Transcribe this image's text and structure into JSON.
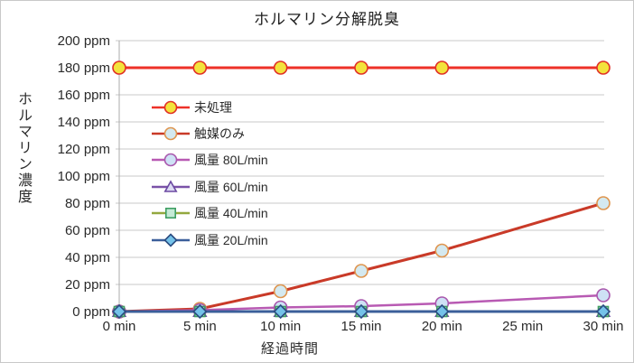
{
  "colors": {
    "background": "#ffffff",
    "frame_border": "#c9c9c9",
    "grid": "#c9c9c9",
    "axis": "#ababab",
    "text": "#2b2b2b"
  },
  "chart_data": {
    "type": "line",
    "title": "ホルマリン分解脱臭",
    "xlabel": "経過時間",
    "ylabel": "ホルマリン濃度",
    "xlim": [
      0,
      30
    ],
    "ylim": [
      0,
      200
    ],
    "grid": true,
    "legend_position": "upper-left-inside",
    "x_ticks": [
      0,
      5,
      10,
      15,
      20,
      25,
      30
    ],
    "x_tick_labels": [
      "0 min",
      "5 min",
      "10 min",
      "15 min",
      "20 min",
      "25 min",
      "30 min"
    ],
    "y_ticks": [
      0,
      20,
      40,
      60,
      80,
      100,
      120,
      140,
      160,
      180,
      200
    ],
    "y_tick_labels": [
      "0 ppm",
      "20 ppm",
      "40 ppm",
      "60 ppm",
      "80 ppm",
      "100 ppm",
      "120 ppm",
      "140 ppm",
      "160 ppm",
      "180 ppm",
      "200 ppm"
    ],
    "x": [
      0,
      5,
      10,
      15,
      20,
      30
    ],
    "series": [
      {
        "id": "untreated",
        "name": "未処理",
        "values": [
          180,
          180,
          180,
          180,
          180,
          180
        ],
        "line_color": "#ee3128",
        "line_width": 3,
        "marker": "circle",
        "marker_fill": "#f3e33c",
        "marker_stroke": "#e03026"
      },
      {
        "id": "catalyst-only",
        "name": "触媒のみ",
        "values": [
          0,
          2,
          15,
          30,
          45,
          80
        ],
        "line_color": "#c93a28",
        "line_width": 3,
        "marker": "circle",
        "marker_fill": "#d4e9f0",
        "marker_stroke": "#df954e"
      },
      {
        "id": "airflow-80",
        "name": "風量 80L/min",
        "values": [
          0,
          1,
          3,
          4,
          6,
          12
        ],
        "line_color": "#b85ab3",
        "line_width": 2.5,
        "marker": "circle",
        "marker_fill": "#cee1f5",
        "marker_stroke": "#a958ad"
      },
      {
        "id": "airflow-60",
        "name": "風量 60L/min",
        "values": [
          0,
          0,
          0,
          0,
          0,
          0
        ],
        "line_color": "#7b52a8",
        "line_width": 2,
        "marker": "triangle",
        "marker_fill": "#dcdaf2",
        "marker_stroke": "#6b49a2"
      },
      {
        "id": "airflow-40",
        "name": "風量 40L/min",
        "values": [
          0,
          0,
          0,
          0,
          0,
          0
        ],
        "line_color": "#93a83e",
        "line_width": 2.5,
        "marker": "square",
        "marker_fill": "#c5ead6",
        "marker_stroke": "#3f9f63"
      },
      {
        "id": "airflow-20",
        "name": "風量 20L/min",
        "values": [
          0,
          0,
          0,
          0,
          0,
          0
        ],
        "line_color": "#3b5f9a",
        "line_width": 3,
        "marker": "diamond",
        "marker_fill": "#74c2e9",
        "marker_stroke": "#2a4b80"
      }
    ]
  }
}
